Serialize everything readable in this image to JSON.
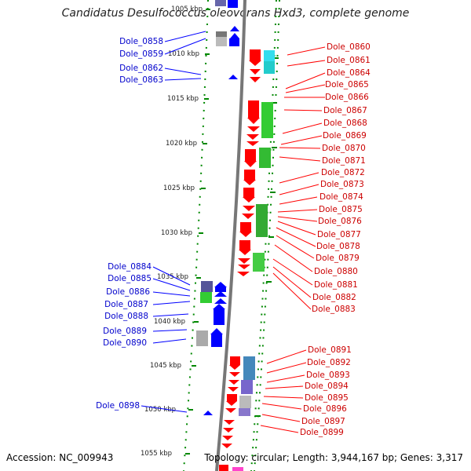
{
  "title": "Candidatus Desulfococcus oleovorans Hxd3, complete genome",
  "footer": {
    "accession": "Accession: NC_009943",
    "summary": "Topology: circular; Length: 3,944,167 bp; Genes: 3,317"
  },
  "ticks": [
    "1005 kbp",
    "1010 kbp",
    "1015 kbp",
    "1020 kbp",
    "1025 kbp",
    "1030 kbp",
    "1035 kbp",
    "1040 kbp",
    "1045 kbp",
    "1050 kbp",
    "1055 kbp"
  ],
  "left_labels": [
    "Dole_0858",
    "Dole_0859",
    "Dole_0862",
    "Dole_0863",
    "Dole_0884",
    "Dole_0885",
    "Dole_0886",
    "Dole_0887",
    "Dole_0888",
    "Dole_0889",
    "Dole_0890",
    "Dole_0898"
  ],
  "right_labels": [
    "Dole_0860",
    "Dole_0861",
    "Dole_0864",
    "Dole_0865",
    "Dole_0866",
    "Dole_0867",
    "Dole_0868",
    "Dole_0869",
    "Dole_0870",
    "Dole_0871",
    "Dole_0872",
    "Dole_0873",
    "Dole_0874",
    "Dole_0875",
    "Dole_0876",
    "Dole_0877",
    "Dole_0878",
    "Dole_0879",
    "Dole_0880",
    "Dole_0881",
    "Dole_0882",
    "Dole_0883",
    "Dole_0891",
    "Dole_0892",
    "Dole_0893",
    "Dole_0894",
    "Dole_0895",
    "Dole_0896",
    "Dole_0897",
    "Dole_0899"
  ],
  "colors": {
    "forward_cds": "#ff0000",
    "reverse_cds": "#0000ff",
    "backbone": "#777777",
    "tick_dots": "#008800",
    "cog_green": "#33cc33",
    "cog_cyan": "#33ddee",
    "cog_purple": "#5555aa",
    "cog_grey": "#aaaaaa"
  }
}
